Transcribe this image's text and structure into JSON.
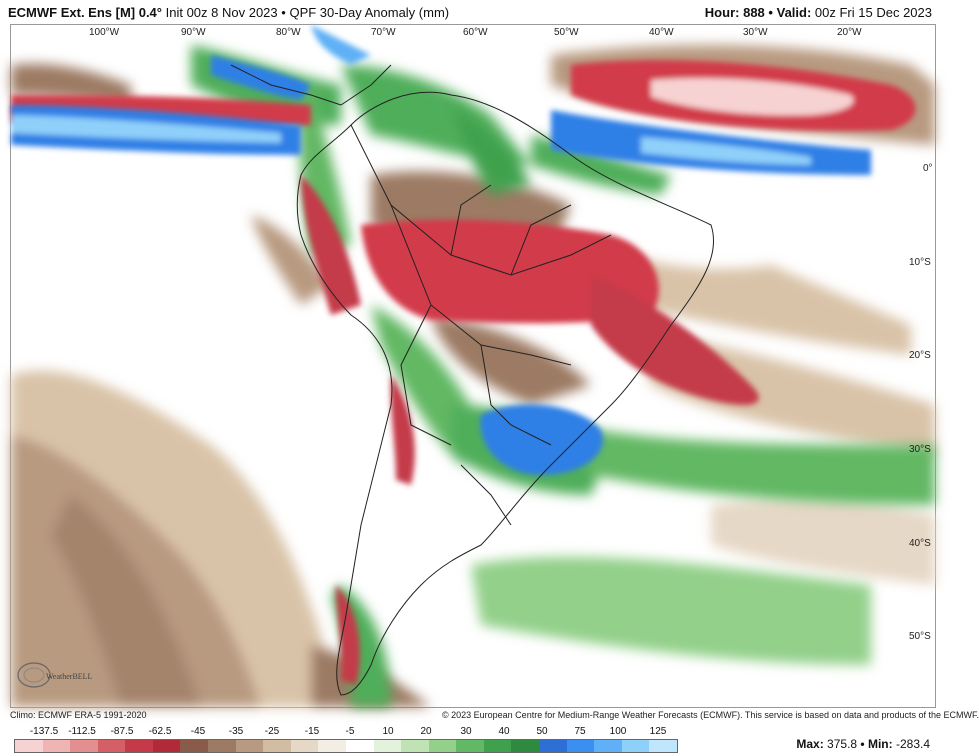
{
  "header": {
    "model": "ECMWF Ext. Ens [M] 0.4",
    "degree_mark": "°",
    "init": "Init 00z 8 Nov 2023",
    "separator": "•",
    "product": "QPF 30-Day Anomaly (mm)",
    "hour_label": "Hour:",
    "hour_value": "888",
    "valid_label": "Valid:",
    "valid_value": "00z Fri 15 Dec 2023"
  },
  "longitude_labels": [
    "100°W",
    "90°W",
    "80°W",
    "70°W",
    "60°W",
    "50°W",
    "40°W",
    "30°W",
    "20°W"
  ],
  "latitude_labels": [
    "0°",
    "10°S",
    "20°S",
    "30°S",
    "40°S",
    "50°S"
  ],
  "footer": {
    "climo": "Climo: ECMWF ERA-5 1991-2020",
    "copyright": "© 2023 European Centre for Medium-Range Weather Forecasts (ECMWF). This service is based on data and products of the ECMWF.",
    "logo_text": "WeatherBELL"
  },
  "legend": {
    "labels": [
      "-137.5",
      "-112.5",
      "-87.5",
      "-62.5",
      "-45",
      "-35",
      "-25",
      "-15",
      "-5",
      "10",
      "20",
      "30",
      "40",
      "50",
      "75",
      "100",
      "125"
    ],
    "colors": [
      "#f7d2d2",
      "#efb4b4",
      "#e38f8f",
      "#d45f66",
      "#c43a48",
      "#b02a3a",
      "#8a5a4a",
      "#9c7a64",
      "#b89a80",
      "#d2bca2",
      "#e6d8c6",
      "#f4ede4",
      "#ffffff",
      "#e2f2dc",
      "#bfe3b3",
      "#93d08a",
      "#62b864",
      "#3fa14e",
      "#2e8a3e",
      "#2e6fd6",
      "#3b8ff0",
      "#5fb0f6",
      "#8fd0fa",
      "#bfe6fd"
    ]
  },
  "stats": {
    "max_label": "Max:",
    "max_value": "375.8",
    "min_label": "Min:",
    "min_value": "-283.4"
  },
  "colors": {
    "dry": "#d23a48",
    "wet": "#2f7fe6",
    "green": "#4fae5a",
    "brown": "#9c7a64",
    "tan": "#d9c3a8"
  }
}
